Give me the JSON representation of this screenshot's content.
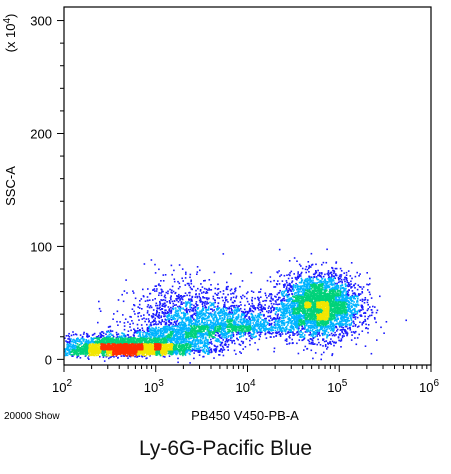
{
  "caption": "Ly-6G-Pacific Blue",
  "chart_data": {
    "type": "scatter",
    "subtype": "flow-cytometry-density-dot-plot",
    "xlabel": "PB450 V450-PB-A",
    "ylabel": "SSC-A",
    "y_multiplier_label": "(x 10",
    "y_multiplier_exponent": "4",
    "y_multiplier_close": ")",
    "event_count_label": "20000 Show",
    "x_scale": "log",
    "xlim": [
      100,
      1000000
    ],
    "ylim": [
      -5,
      312
    ],
    "x_ticks": [
      {
        "value": 100,
        "base": "10",
        "exp": "2"
      },
      {
        "value": 1000,
        "base": "10",
        "exp": "3"
      },
      {
        "value": 10000,
        "base": "10",
        "exp": "4"
      },
      {
        "value": 100000,
        "base": "10",
        "exp": "5"
      },
      {
        "value": 1000000,
        "base": "10",
        "exp": "6"
      }
    ],
    "y_ticks": [
      {
        "value": 0,
        "label": "0"
      },
      {
        "value": 100,
        "label": "100"
      },
      {
        "value": 200,
        "label": "200"
      },
      {
        "value": 300,
        "label": "300"
      }
    ],
    "density_colors": [
      "#1a1aff",
      "#00b4ff",
      "#00d27a",
      "#f2e600",
      "#ff2d00"
    ],
    "populations": [
      {
        "x_center": 450,
        "x_log_sd": 0.38,
        "y_center": 10,
        "y_sd": 6,
        "count": 3600,
        "y_skew": "up"
      },
      {
        "x_center": 2200,
        "x_log_sd": 0.32,
        "y_center": 28,
        "y_sd": 20,
        "count": 1700,
        "y_skew": "up"
      },
      {
        "x_center": 8000,
        "x_log_sd": 0.35,
        "y_center": 32,
        "y_sd": 12,
        "count": 1200,
        "y_skew": "up"
      },
      {
        "x_center": 60000,
        "x_log_sd": 0.22,
        "y_center": 48,
        "y_sd": 14,
        "count": 3400,
        "y_skew": "none"
      }
    ]
  }
}
